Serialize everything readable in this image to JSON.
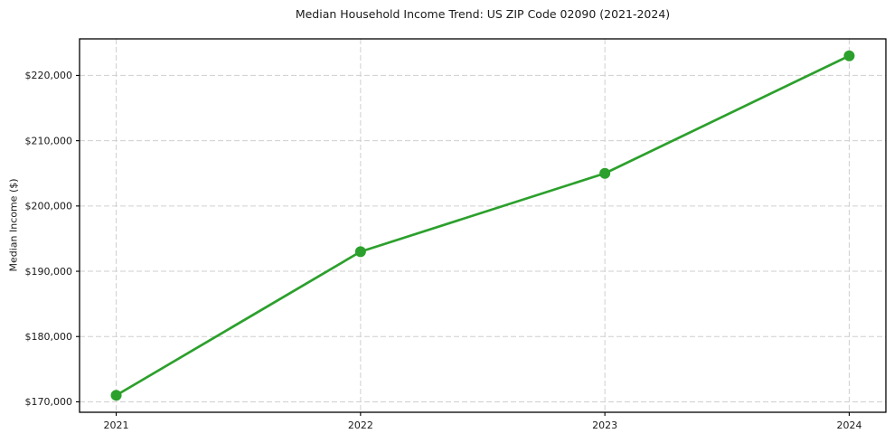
{
  "chart_data": {
    "type": "line",
    "title": "Median Household Income Trend: US ZIP Code 02090 (2021-2024)",
    "xlabel": "",
    "ylabel": "Median Income ($)",
    "x": [
      2021,
      2022,
      2023,
      2024
    ],
    "values": [
      171000,
      193000,
      205000,
      223000
    ],
    "xtick_labels": [
      "2021",
      "2022",
      "2023",
      "2024"
    ],
    "ytick_values": [
      170000,
      180000,
      190000,
      200000,
      210000,
      220000
    ],
    "ytick_labels": [
      "$170,000",
      "$180,000",
      "$190,000",
      "$200,000",
      "$210,000",
      "$220,000"
    ],
    "xlim": [
      2020.85,
      2024.15
    ],
    "ylim": [
      168400,
      225600
    ],
    "grid": true,
    "legend": false,
    "colors": {
      "line": "#2ca02c",
      "marker": "#2ca02c",
      "grid": "#cfcfcf",
      "axis": "#000000",
      "background": "#ffffff",
      "text": "#1a1a1a"
    }
  }
}
